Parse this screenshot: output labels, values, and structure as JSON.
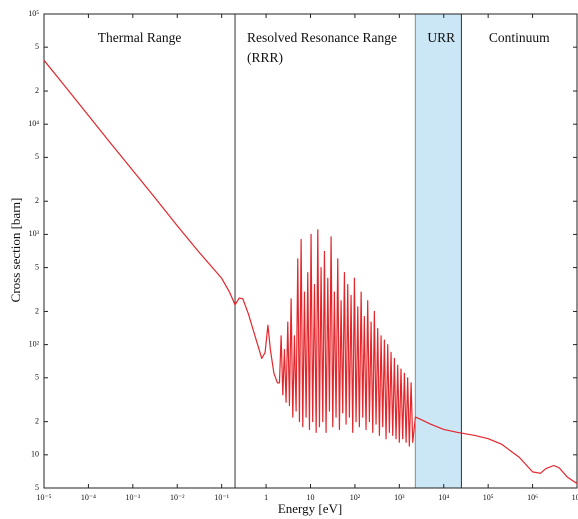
{
  "chart_data": {
    "type": "line",
    "xlabel": "Energy [eV]",
    "ylabel": "Cross section [barn]",
    "log_x": true,
    "log_y": true,
    "xlim": [
      1e-05,
      10000000
    ],
    "ylim": [
      5,
      100000
    ],
    "xticks": [
      {
        "value": 1e-05,
        "label": "10⁻⁵"
      },
      {
        "value": 0.0001,
        "label": "10⁻⁴"
      },
      {
        "value": 0.001,
        "label": "10⁻³"
      },
      {
        "value": 0.01,
        "label": "10⁻²"
      },
      {
        "value": 0.1,
        "label": "10⁻¹"
      },
      1,
      10,
      {
        "value": 100,
        "label": "10²"
      },
      {
        "value": 1000,
        "label": "10³"
      },
      {
        "value": 10000,
        "label": "10⁴"
      },
      {
        "value": 100000,
        "label": "10⁵"
      },
      {
        "value": 1000000,
        "label": "10⁶"
      },
      {
        "value": 10000000,
        "label": "10⁷"
      }
    ],
    "yticks": [
      {
        "value": 100000,
        "label": "10⁵"
      },
      {
        "value": 50000,
        "label": "5"
      },
      {
        "value": 20000,
        "label": "2"
      },
      {
        "value": 10000,
        "label": "10⁴"
      },
      {
        "value": 5000,
        "label": "5"
      },
      {
        "value": 2000,
        "label": "2"
      },
      {
        "value": 1000,
        "label": "10³"
      },
      {
        "value": 500,
        "label": "5"
      },
      {
        "value": 200,
        "label": "2"
      },
      {
        "value": 100,
        "label": "10²"
      },
      {
        "value": 50,
        "label": "5"
      },
      {
        "value": 20,
        "label": "2"
      },
      10,
      5
    ],
    "regions": [
      {
        "label": "Thermal Range",
        "end": 0.2
      },
      {
        "label": "Resolved Resonance Range (RRR)",
        "end": 2300
      },
      {
        "label": "URR",
        "end": 25000,
        "fill": "#cbe7f6"
      },
      {
        "label": "Continuum"
      }
    ],
    "series": [
      {
        "color": "#e3262b",
        "x": [
          1e-05,
          3e-05,
          0.0001,
          0.0003,
          0.001,
          0.003,
          0.01,
          0.03,
          0.1,
          0.15,
          0.2,
          0.25,
          0.3,
          0.4,
          0.6,
          0.8,
          0.95,
          1.1,
          1.25,
          1.5,
          1.8,
          2.0,
          2.18,
          2.38,
          2.59,
          2.82,
          3.08,
          3.36,
          3.66,
          3.99,
          4.35,
          4.74,
          5.17,
          5.64,
          6.15,
          6.7,
          7.31,
          7.96,
          8.68,
          9.47,
          10.3,
          11.2,
          12.3,
          13.4,
          14.6,
          15.9,
          17.3,
          18.9,
          20.6,
          22.4,
          24.5,
          26.7,
          29.1,
          31.7,
          34.5,
          37.6,
          41.1,
          44.8,
          48.8,
          53.2,
          58.0,
          63.2,
          68.9,
          75.1,
          81.9,
          89.3,
          97.4,
          106,
          116,
          126,
          138,
          150,
          163,
          178,
          194,
          212,
          231,
          252,
          274,
          299,
          326,
          356,
          388,
          423,
          461,
          502,
          548,
          597,
          651,
          710,
          774,
          843,
          920,
          1000,
          1090,
          1190,
          1300,
          1420,
          1540,
          1680,
          1840,
          2000,
          2300,
          3000,
          5000,
          10000,
          20000,
          50000,
          100000,
          200000,
          500000,
          1000000,
          1500000,
          2000000,
          3000000,
          4000000,
          6000000,
          10000000
        ],
        "values": [
          38000,
          22000,
          12000,
          6900,
          3800,
          2200,
          1200,
          700,
          400,
          300,
          230,
          265,
          260,
          190,
          110,
          75,
          85,
          150,
          90,
          55,
          45,
          45,
          120,
          35,
          90,
          30,
          160,
          28,
          260,
          22,
          120,
          25,
          600,
          20,
          900,
          18,
          300,
          22,
          450,
          17,
          1000,
          20,
          350,
          16,
          1100,
          18,
          500,
          20,
          700,
          16,
          400,
          25,
          950,
          18,
          300,
          22,
          600,
          17,
          250,
          24,
          450,
          19,
          350,
          22,
          280,
          16,
          400,
          20,
          220,
          18,
          300,
          22,
          180,
          17,
          250,
          20,
          160,
          16,
          200,
          19,
          140,
          15,
          120,
          18,
          110,
          14,
          100,
          16,
          85,
          15,
          75,
          14,
          65,
          13,
          60,
          14,
          55,
          13,
          50,
          12,
          45,
          13,
          22,
          21,
          19,
          17,
          16,
          15,
          14,
          12.5,
          9.5,
          7,
          6.8,
          7.5,
          8,
          7.6,
          6.3,
          5.5
        ]
      }
    ]
  }
}
